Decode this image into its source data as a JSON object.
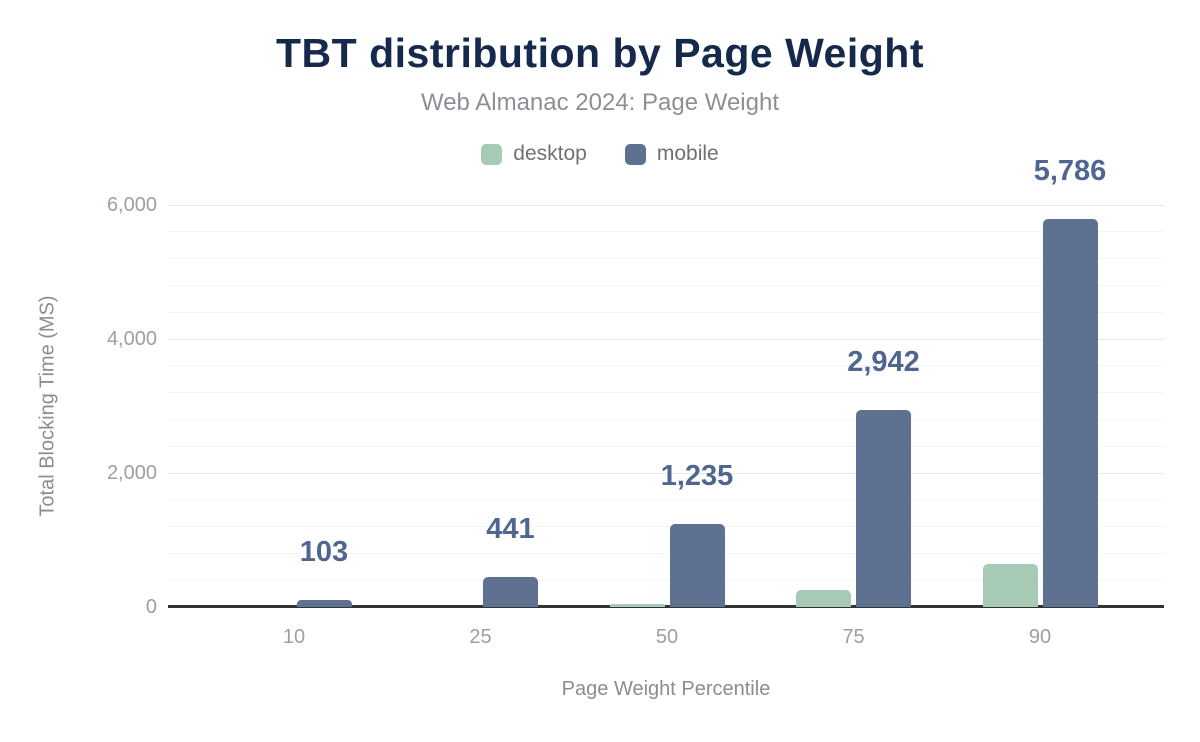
{
  "colors": {
    "title_color": "#15294d",
    "subtitle_color": "#8b9096",
    "legend_label_color": "#6e7276",
    "tick_label_color": "#9aa0a6",
    "axis_title_color": "#8a8d92",
    "data_label_color": "#4f6790",
    "grid_minor": "#f5f5f7",
    "grid_major": "#e7e8ea",
    "axis_line": "#333333"
  },
  "chart_data": {
    "type": "bar",
    "title": "TBT distribution by Page Weight",
    "subtitle": "Web Almanac 2024: Page Weight",
    "xlabel": "Page Weight Percentile",
    "ylabel": "Total Blocking Time (MS)",
    "categories": [
      "10",
      "25",
      "50",
      "75",
      "90"
    ],
    "series": [
      {
        "name": "desktop",
        "color": "#a6cab6",
        "values": [
          0,
          5,
          45,
          250,
          640
        ]
      },
      {
        "name": "mobile",
        "color": "#5e7191",
        "values": [
          103,
          441,
          1235,
          2942,
          5786
        ],
        "data_labels": [
          "103",
          "441",
          "1,235",
          "2,942",
          "5,786"
        ]
      }
    ],
    "ylim": [
      0,
      6000
    ],
    "y_ticks": [
      0,
      2000,
      4000,
      6000
    ],
    "y_tick_labels": [
      "0",
      "2,000",
      "4,000",
      "6,000"
    ],
    "y_minor_step": 400,
    "grid": true,
    "legend_position": "top"
  }
}
